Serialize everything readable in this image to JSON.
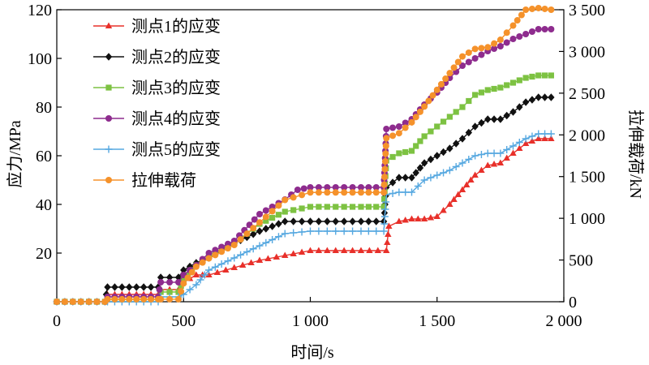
{
  "chart_data": {
    "type": "line",
    "xlabel": "时间/s",
    "ylabel": "应力/MPa",
    "y2label": "拉伸载荷/kN",
    "xlim": [
      0,
      2000
    ],
    "ylim": [
      0,
      120
    ],
    "y2lim": [
      0,
      3500
    ],
    "xticks": [
      0,
      500,
      1000,
      1500,
      2000
    ],
    "xtick_labels": [
      "0",
      "500",
      "1 000",
      "1 500",
      "2 000"
    ],
    "yticks": [
      0,
      20,
      40,
      60,
      80,
      100,
      120
    ],
    "ytick_labels": [
      "",
      "20",
      "40",
      "60",
      "80",
      "100",
      "120"
    ],
    "y2ticks": [
      0,
      500,
      1000,
      1500,
      2000,
      2500,
      3000,
      3500
    ],
    "y2tick_labels": [
      "0",
      "500",
      "1 000",
      "1 500",
      "2 000",
      "2 500",
      "3 000",
      "3 500"
    ],
    "grid": false,
    "legend_position": "top-left",
    "series": [
      {
        "name": "测点1的应变",
        "color": "#e8302a",
        "marker": "triangle",
        "axis": "left",
        "x": [
          0,
          190,
          200,
          400,
          410,
          480,
          500,
          550,
          600,
          700,
          800,
          900,
          1000,
          1100,
          1200,
          1300,
          1310,
          1350,
          1400,
          1450,
          1500,
          1550,
          1600,
          1650,
          1700,
          1750,
          1800,
          1850,
          1900,
          1950
        ],
        "y": [
          0,
          0,
          3,
          3,
          5,
          5,
          8,
          11,
          11,
          14,
          17,
          19,
          21,
          21,
          21,
          21,
          31,
          33,
          34,
          34,
          35,
          40,
          46,
          52,
          56,
          57,
          61,
          65,
          67,
          67
        ]
      },
      {
        "name": "测点2的应变",
        "color": "#111111",
        "marker": "diamond",
        "axis": "left",
        "x": [
          0,
          190,
          200,
          400,
          410,
          480,
          500,
          550,
          600,
          700,
          800,
          900,
          1000,
          1100,
          1200,
          1290,
          1300,
          1350,
          1400,
          1450,
          1500,
          1550,
          1600,
          1650,
          1700,
          1750,
          1800,
          1850,
          1900,
          1950
        ],
        "y": [
          0,
          0,
          6,
          6,
          10,
          10,
          13,
          16,
          18,
          24,
          29,
          33,
          33,
          33,
          33,
          33,
          47,
          51,
          51,
          57,
          60,
          63,
          67,
          72,
          75,
          75,
          78,
          82,
          84,
          84
        ]
      },
      {
        "name": "测点3的应变",
        "color": "#7dc242",
        "marker": "square",
        "axis": "left",
        "x": [
          0,
          190,
          200,
          400,
          410,
          480,
          500,
          550,
          600,
          700,
          800,
          900,
          1000,
          1100,
          1200,
          1290,
          1300,
          1350,
          1400,
          1450,
          1500,
          1550,
          1600,
          1650,
          1700,
          1750,
          1800,
          1850,
          1900,
          1950
        ],
        "y": [
          0,
          0,
          1,
          1,
          4,
          4,
          9,
          15,
          19,
          24,
          32,
          37,
          39,
          39,
          39,
          39,
          58,
          61,
          62,
          68,
          72,
          76,
          80,
          85,
          87,
          88,
          90,
          92,
          93,
          93
        ]
      },
      {
        "name": "测点4的应变",
        "color": "#8e2c8e",
        "marker": "circle",
        "axis": "left",
        "x": [
          0,
          190,
          200,
          400,
          410,
          480,
          500,
          550,
          600,
          700,
          800,
          900,
          950,
          1000,
          1100,
          1200,
          1290,
          1300,
          1350,
          1400,
          1450,
          1500,
          1550,
          1600,
          1650,
          1700,
          1750,
          1800,
          1850,
          1900,
          1950
        ],
        "y": [
          0,
          0,
          2,
          2,
          8,
          8,
          11,
          15,
          20,
          25,
          36,
          42,
          46,
          47,
          47,
          47,
          47,
          71,
          72,
          75,
          81,
          86,
          92,
          97,
          100,
          103,
          105,
          108,
          110,
          112,
          112
        ]
      },
      {
        "name": "测点5的应变",
        "color": "#56a8e0",
        "marker": "plus",
        "axis": "left",
        "x": [
          0,
          190,
          200,
          400,
          410,
          480,
          500,
          550,
          600,
          700,
          800,
          900,
          1000,
          1100,
          1200,
          1290,
          1300,
          1350,
          1400,
          1450,
          1500,
          1550,
          1600,
          1650,
          1700,
          1750,
          1800,
          1850,
          1900,
          1950
        ],
        "y": [
          0,
          0,
          0,
          0,
          2,
          2,
          3,
          7,
          13,
          18,
          23,
          28,
          29,
          29,
          29,
          29,
          44,
          45,
          45,
          50,
          52,
          54,
          57,
          60,
          61,
          61,
          64,
          67,
          69,
          69
        ]
      },
      {
        "name": "拉伸载荷",
        "color": "#f5922b",
        "marker": "circle",
        "axis": "right",
        "x": [
          0,
          190,
          200,
          400,
          410,
          480,
          500,
          550,
          600,
          700,
          800,
          900,
          1000,
          1100,
          1200,
          1290,
          1300,
          1350,
          1400,
          1450,
          1500,
          1550,
          1600,
          1650,
          1700,
          1750,
          1800,
          1850,
          1900,
          1950
        ],
        "y": [
          0,
          0,
          30,
          30,
          30,
          30,
          220,
          420,
          520,
          680,
          950,
          1220,
          1310,
          1310,
          1310,
          1310,
          1960,
          2020,
          2150,
          2340,
          2540,
          2740,
          2940,
          3030,
          3050,
          3140,
          3310,
          3500,
          3520,
          3500
        ]
      }
    ]
  }
}
